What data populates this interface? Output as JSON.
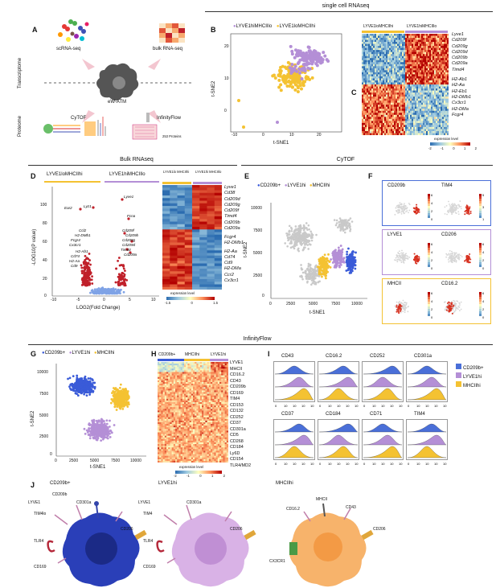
{
  "sections": {
    "scrna": "single cell RNAseq",
    "bulk": "Bulk RNAseq",
    "cytof": "CyTOF",
    "infinity": "InfinityFlow"
  },
  "panelA": {
    "label": "A",
    "transcriptome": "Transcriptome",
    "proteome": "Proteome",
    "scrna": "scRNA-seq",
    "bulkrna": "bulk RNA-seq",
    "center": "eW-ATM",
    "cytof": "CyTOF",
    "infinity": "InfinityFlow",
    "proteins": "253 Proteins"
  },
  "panelB": {
    "label": "B",
    "legend": [
      "LYVE1hiMHCIIlo",
      "LYVE1loMHCIIhi"
    ],
    "xlabel": "t-SNE1",
    "ylabel": "t-SNE2",
    "xticks": [
      "-10",
      "0",
      "10",
      "20"
    ],
    "yticks": [
      "0",
      "10",
      "20"
    ]
  },
  "panelC": {
    "label": "C",
    "col_headers": [
      "LYVE1loMHCIIhi",
      "LYVE1hiMHCIIlo"
    ],
    "genes": [
      "Lyve1",
      "Cd209f",
      "Cd209g",
      "Cd209d",
      "Cd209b",
      "Cd209a",
      "Timd4",
      "H2-Ab1",
      "H2-Aa",
      "H2-Eb1",
      "H2-DMb1",
      "Cx3cr1",
      "H2-DMa",
      "Fcgr4"
    ],
    "legend_title": "expression level",
    "legend_ticks": [
      "-2",
      "-1",
      "0",
      "1",
      "2"
    ]
  },
  "panelD": {
    "label": "D",
    "header_left": "LYVE1loMHCIIhi",
    "header_right": "LYVE1hiMHCIIlo",
    "hm_headers": [
      "LYVE1lo MHCIIhi",
      "LYVE1hi MHCIIlo"
    ],
    "xlabel": "LOG2(Fold Change)",
    "ylabel": "-LOG10(P value)",
    "xticks": [
      "-10",
      "-5",
      "0",
      "5",
      "10"
    ],
    "yticks": [
      "0",
      "20",
      "40",
      "60",
      "80",
      "100"
    ],
    "left_genes": [
      "Ear2",
      "Lyz1",
      "Ccl2",
      "H2-DMb1",
      "Fcgr4",
      "Cx3cr1",
      "H2-Ab1",
      "Cd74",
      "H2-Aa",
      "Cd9"
    ],
    "right_genes": [
      "Lyve1",
      "Fcna",
      "Cd209f",
      "Cd209b",
      "Cd209g",
      "Cd209d",
      "Timd4",
      "Cd209a"
    ],
    "hm_genes_top": [
      "Lyve1",
      "Cd38",
      "Cd209d",
      "Cd209g",
      "Cd209f",
      "Timd4",
      "Cd209b",
      "Cd209a"
    ],
    "hm_genes_bottom": [
      "Fcgr4",
      "H2-DMb1",
      "H2-Aa",
      "Cd74",
      "Cd9",
      "H2-DMa",
      "Ccr2",
      "Cx3cr1"
    ],
    "legend_title": "expression level",
    "legend_ticks": [
      "-1.5",
      "0",
      "1.5"
    ]
  },
  "panelE": {
    "label": "E",
    "legend": [
      "CD209b+",
      "LYVE1hi",
      "MHCIIhi"
    ],
    "xlabel": "t-SNE1",
    "ylabel": "t-SNE2",
    "xticks": [
      "0",
      "2500",
      "5000",
      "7500",
      "10000"
    ],
    "yticks": [
      "0",
      "2500",
      "5000",
      "7500",
      "10000"
    ]
  },
  "panelF": {
    "label": "F",
    "rows": [
      {
        "a": "CD209b",
        "b": "TIM4",
        "ta": [
          "6",
          "4",
          "2",
          "0"
        ],
        "tb": [
          "5",
          "3",
          "1"
        ]
      },
      {
        "a": "LYVE1",
        "b": "CD206",
        "ta": [
          "6",
          "4",
          "2",
          "0"
        ],
        "tb": [
          "6",
          "4",
          "2",
          "0"
        ]
      },
      {
        "a": "MHCII",
        "b": "CD16.2",
        "ta": [
          "6",
          "4",
          "2",
          "0"
        ],
        "tb": [
          "6",
          "4",
          "2",
          "0"
        ]
      }
    ]
  },
  "panelG": {
    "label": "G",
    "legend": [
      "CD209b+",
      "LYVE1hi",
      "MHCIIhi"
    ],
    "xlabel": "t-SNE1",
    "ylabel": "t-SNE2",
    "xticks": [
      "0",
      "2500",
      "5000",
      "7500",
      "10000"
    ],
    "yticks": [
      "0",
      "2500",
      "5000",
      "7500",
      "10000"
    ]
  },
  "panelH": {
    "label": "H",
    "col_headers": [
      "CD209b+",
      "MHCIIhi",
      "LYVE1hi"
    ],
    "markers": [
      "LYVE1",
      "MHCII",
      "CD16.2",
      "CD43",
      "CD209b",
      "CD169",
      "TIM4",
      "CD153",
      "CD132",
      "CD252",
      "CD37",
      "CD301a",
      "CD5",
      "CD268",
      "CD184",
      "Ly6D",
      "CD154",
      "TLR4/MD2"
    ],
    "legend_title": "expression level",
    "legend_ticks": [
      "-2",
      "-1",
      "0",
      "1",
      "2"
    ]
  },
  "panelI": {
    "label": "I",
    "top": [
      "CD43",
      "CD16.2",
      "CD252",
      "CD301a"
    ],
    "bottom": [
      "CD37",
      "CD184",
      "CD71",
      "TIM4"
    ],
    "legend": [
      "CD209b+",
      "LYVE1hi",
      "MHCIIhi"
    ],
    "xticks": [
      "0",
      "10",
      "10",
      "10",
      "10"
    ]
  },
  "panelJ": {
    "label": "J",
    "cells": [
      {
        "title": "CD209b+",
        "labels": [
          "CD209b",
          "LYVE1",
          "CD301a",
          "TIM4lo",
          "CD206",
          "TLR4",
          "CD169"
        ]
      },
      {
        "title": "LYVE1hi",
        "labels": [
          "LYVE1",
          "CD301a",
          "TIM4",
          "CD206",
          "TLR4",
          "CD169"
        ]
      },
      {
        "title": "MHCIIhi",
        "labels": [
          "MHCII",
          "CD16.2",
          "CD43",
          "CD206",
          "CX3CR1"
        ]
      }
    ]
  },
  "colors": {
    "purple": "#b48fd6",
    "yellow": "#f4c232",
    "blue": "#3a5bd8",
    "red": "#c0202a",
    "lightblue": "#7fa3e6",
    "frame_blue": "#4a6fd8",
    "frame_purple": "#b48fd6",
    "frame_yellow": "#f4c232"
  }
}
